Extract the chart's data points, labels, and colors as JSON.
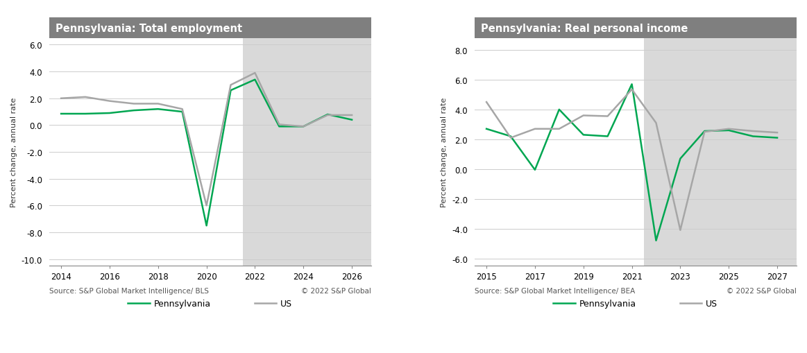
{
  "chart1": {
    "title": "Pennsylvania: Total employment",
    "ylabel": "Percent change, annual rate",
    "source": "Source: S&P Global Market Intelligence/ BLS",
    "copyright": "© 2022 S&P Global",
    "ylim": [
      -10.5,
      6.5
    ],
    "yticks": [
      -10.0,
      -8.0,
      -6.0,
      -4.0,
      -2.0,
      0.0,
      2.0,
      4.0,
      6.0
    ],
    "xlim": [
      2013.5,
      2026.8
    ],
    "xticks": [
      2014,
      2016,
      2018,
      2020,
      2022,
      2024,
      2026
    ],
    "forecast_start": 2021.5,
    "forecast_end": 2026.8,
    "pa_x": [
      2014,
      2015,
      2016,
      2017,
      2018,
      2019,
      2020,
      2021,
      2022,
      2023,
      2024,
      2025,
      2026
    ],
    "pa_y": [
      0.85,
      0.85,
      0.9,
      1.1,
      1.2,
      1.0,
      -7.5,
      2.6,
      3.4,
      -0.1,
      -0.1,
      0.8,
      0.4
    ],
    "us_x": [
      2014,
      2015,
      2016,
      2017,
      2018,
      2019,
      2020,
      2021,
      2022,
      2023,
      2024,
      2025,
      2026
    ],
    "us_y": [
      2.0,
      2.1,
      1.8,
      1.6,
      1.6,
      1.2,
      -6.0,
      3.0,
      3.9,
      0.05,
      -0.1,
      0.75,
      0.75
    ]
  },
  "chart2": {
    "title": "Pennsylvania: Real personal income",
    "ylabel": "Percent change, annual rate",
    "source": "Source: S&P Global Market Intelligence/ BEA",
    "copyright": "© 2022 S&P Global",
    "ylim": [
      -6.5,
      8.8
    ],
    "yticks": [
      -6.0,
      -4.0,
      -2.0,
      0.0,
      2.0,
      4.0,
      6.0,
      8.0
    ],
    "xlim": [
      2014.5,
      2027.8
    ],
    "xticks": [
      2015,
      2017,
      2019,
      2021,
      2023,
      2025,
      2027
    ],
    "forecast_start": 2021.5,
    "forecast_end": 2027.8,
    "pa_x": [
      2015,
      2016,
      2017,
      2018,
      2019,
      2020,
      2021,
      2022,
      2023,
      2024,
      2025,
      2026,
      2027
    ],
    "pa_y": [
      2.7,
      2.2,
      -0.05,
      4.0,
      2.3,
      2.2,
      5.7,
      -4.8,
      0.7,
      2.55,
      2.6,
      2.2,
      2.1
    ],
    "us_x": [
      2015,
      2016,
      2017,
      2018,
      2019,
      2020,
      2021,
      2022,
      2023,
      2024,
      2025,
      2026,
      2027
    ],
    "us_y": [
      4.5,
      2.1,
      2.7,
      2.7,
      3.6,
      3.55,
      5.35,
      3.1,
      -4.1,
      2.5,
      2.7,
      2.55,
      2.45
    ]
  },
  "pa_color": "#00a651",
  "us_color": "#a6a6a6",
  "forecast_color": "#d9d9d9",
  "title_bg_color": "#7f7f7f",
  "title_text_color": "#ffffff",
  "axis_bg_color": "#ffffff",
  "fig_bg_color": "#ffffff",
  "source_fontsize": 7.5,
  "title_fontsize": 10.5,
  "label_fontsize": 8,
  "tick_fontsize": 8.5,
  "legend_fontsize": 9,
  "line_width": 1.8
}
